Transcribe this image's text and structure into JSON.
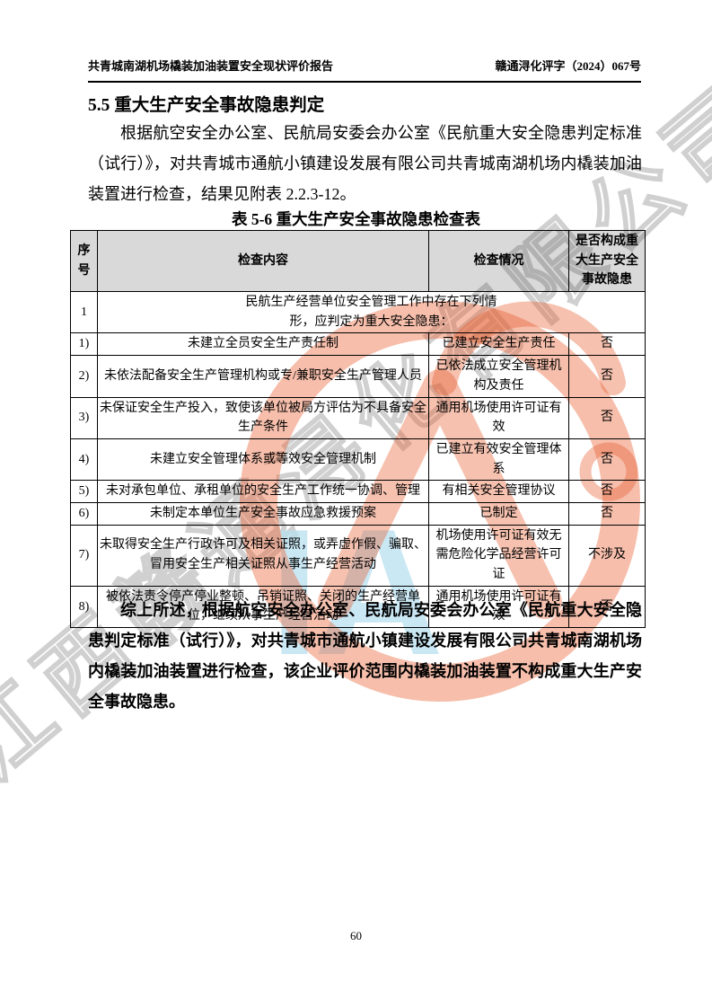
{
  "page": {
    "header_left": "共青城南湖机场橇装加油装置安全现状评价报告",
    "header_right": "赣通浔化评字（2024）067号",
    "page_number": "60"
  },
  "section": {
    "heading": "5.5 重大生产安全事故隐患判定",
    "intro_paragraph": "根据航空安全办公室、民航局安委会办公室《民航重大安全隐患判定标准（试行）》，对共青城市通航小镇建设发展有限公司共青城南湖机场内橇装加油装置进行检查，结果见附表 2.2.3-12。",
    "conclusion_paragraph": "综上所述，根据航空安全办公室、民航局安委会办公室《民航重大安全隐患判定标准（试行）》，对共青城市通航小镇建设发展有限公司共青城南湖机场内橇装加油装置进行检查，该企业评价范围内橇装加油装置不构成重大生产安全事故隐患。"
  },
  "table": {
    "caption": "表 5-6 重大生产安全事故隐患检查表",
    "columns": [
      "序号",
      "检查内容",
      "检查情况",
      "是否构成重大生产安全事故隐患"
    ],
    "rows": [
      {
        "no": "1",
        "merged": true,
        "content": "民航生产经营单位安全管理工作中存在下列情形，应判定为重大安全隐患："
      },
      {
        "no": "1)",
        "content": "未建立全员安全生产责任制",
        "status": "已建立安全生产责任",
        "major": "否"
      },
      {
        "no": "2)",
        "content": "未依法配备安全生产管理机构或专/兼职安全生产管理人员",
        "status": "已依法成立安全管理机构及责任",
        "major": "否"
      },
      {
        "no": "3)",
        "content": "未保证安全生产投入，致使该单位被局方评估为不具备安全生产条件",
        "status": "通用机场使用许可证有效",
        "major": "否"
      },
      {
        "no": "4)",
        "content": "未建立安全管理体系或等效安全管理机制",
        "status": "已建立有效安全管理体系",
        "major": "否"
      },
      {
        "no": "5)",
        "content": "未对承包单位、承租单位的安全生产工作统一协调、管理",
        "status": "有相关安全管理协议",
        "major": "否"
      },
      {
        "no": "6)",
        "content": "未制定本单位生产安全事故应急救援预案",
        "status": "已制定",
        "major": "否"
      },
      {
        "no": "7)",
        "content": "未取得安全生产行政许可及相关证照，或弄虚作假、骗取、冒用安全生产相关证照从事生产经营活动",
        "status": "机场使用许可证有效无需危险化学品经营许可证",
        "major": "不涉及"
      },
      {
        "no": "8)",
        "content": "被依法责令停产停业整顿、吊销证照、关闭的生产经营单位，继续从事生产经营活动",
        "status": "通用机场使用许可证有效",
        "major": "否"
      }
    ]
  },
  "watermarks": {
    "diagonal_text": "江西赣通浔化有限公司",
    "logo_letters": "IA"
  },
  "colors": {
    "table_header_bg": "#d9d9d9",
    "stamp_color": "#e85c2e",
    "logo_letters_color": "#b8dff0",
    "wm_outline_color": "#c8c8c8"
  }
}
